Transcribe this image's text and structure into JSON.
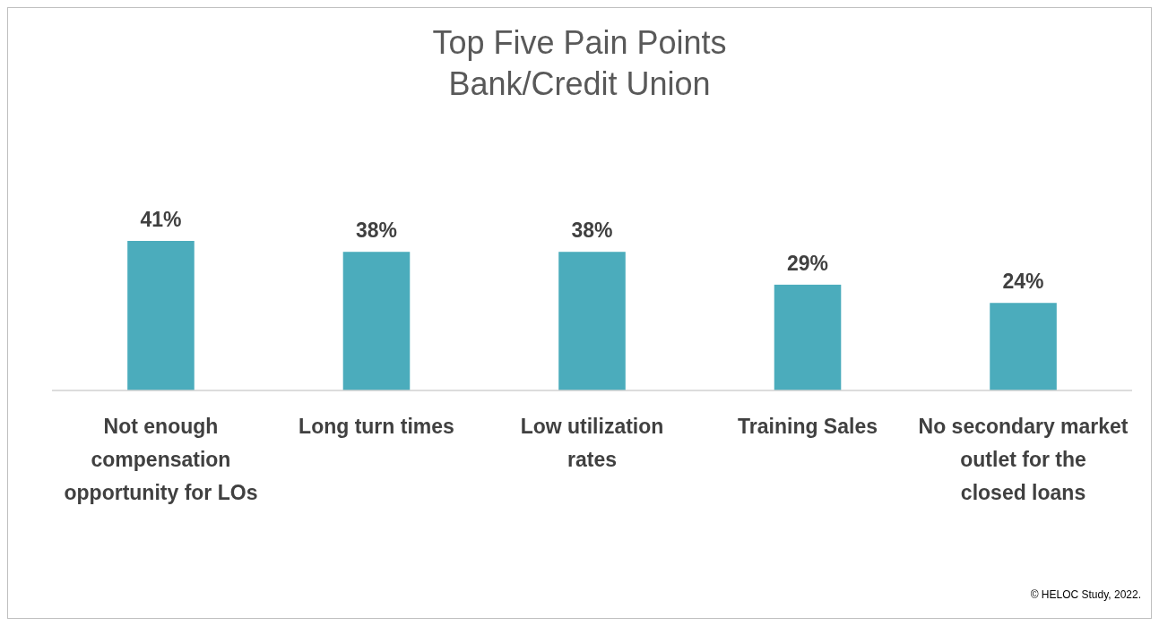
{
  "chart_data": {
    "type": "bar",
    "title": "Top Five Pain Points\nBank/Credit Union",
    "categories": [
      "Not enough compensation opportunity for LOs",
      "Long turn times",
      "Low utilization rates",
      "Training Sales",
      "No secondary market outlet for the closed loans"
    ],
    "values": [
      41,
      38,
      38,
      29,
      24
    ],
    "value_labels": [
      "41%",
      "38%",
      "38%",
      "29%",
      "24%"
    ],
    "color": "#4bacbc",
    "annotations": [
      "© HELOC Study, 2022."
    ]
  }
}
